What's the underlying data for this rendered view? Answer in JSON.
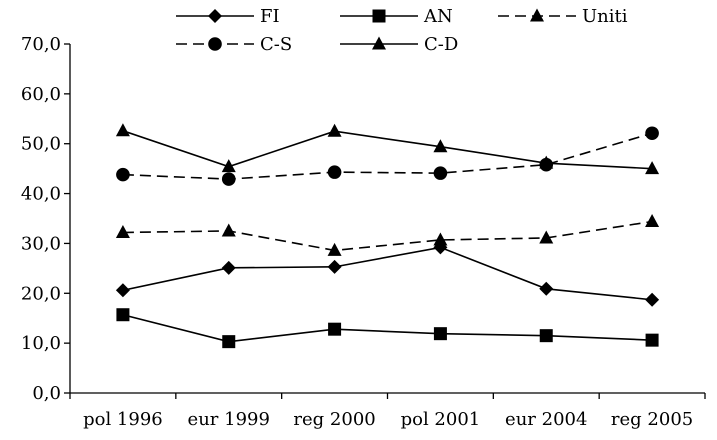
{
  "chart_data": {
    "type": "line",
    "categories": [
      "pol 1996",
      "eur 1999",
      "reg 2000",
      "pol 2001",
      "eur 2004",
      "reg 2005"
    ],
    "ylim": [
      0,
      70
    ],
    "y_ticks": [
      "0,0",
      "10,0",
      "20,0",
      "30,0",
      "40,0",
      "50,0",
      "60,0",
      "70,0"
    ],
    "grid": false,
    "legend_position": "top",
    "series": [
      {
        "name": "FI",
        "marker": "diamond",
        "dash": "solid",
        "values": [
          20.6,
          25.1,
          25.3,
          29.2,
          20.9,
          18.7
        ]
      },
      {
        "name": "AN",
        "marker": "square",
        "dash": "solid",
        "values": [
          15.7,
          10.3,
          12.8,
          11.9,
          11.5,
          10.6
        ]
      },
      {
        "name": "Uniti",
        "marker": "triangle",
        "dash": "dashed",
        "values": [
          32.2,
          32.5,
          28.6,
          30.7,
          31.1,
          34.4
        ]
      },
      {
        "name": "C-S",
        "marker": "circle",
        "dash": "dashed",
        "values": [
          43.8,
          42.9,
          44.3,
          44.1,
          45.8,
          52.1
        ]
      },
      {
        "name": "C-D",
        "marker": "triangle",
        "dash": "solid",
        "values": [
          52.6,
          45.4,
          52.5,
          49.4,
          46.1,
          45.0
        ]
      }
    ]
  }
}
